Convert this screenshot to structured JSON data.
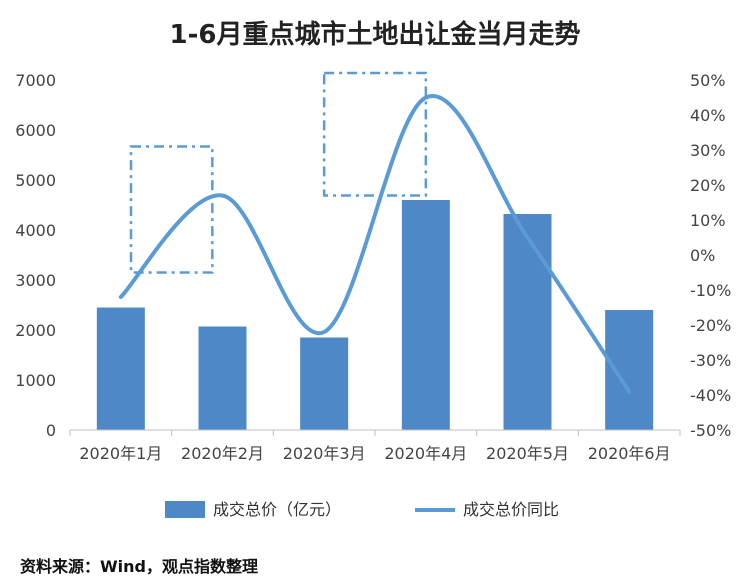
{
  "title": "1-6月重点城市土地出让金当月走势",
  "source": "资料来源：Wind，观点指数整理",
  "chart_data": {
    "type": "bar",
    "title": "1-6月重点城市土地出让金当月走势",
    "categories": [
      "2020年1月",
      "2020年2月",
      "2020年3月",
      "2020年4月",
      "2020年5月",
      "2020年6月"
    ],
    "series": [
      {
        "name": "成交总价（亿元）",
        "type": "bar",
        "axis": "left",
        "values": [
          2450,
          2070,
          1850,
          4600,
          4320,
          2400
        ]
      },
      {
        "name": "成交总价同比",
        "type": "line",
        "axis": "right",
        "values": [
          -12,
          17,
          -22,
          45,
          5,
          -39
        ]
      }
    ],
    "y_left": {
      "min": 0,
      "max": 7000,
      "ticks": [
        0,
        1000,
        2000,
        3000,
        4000,
        5000,
        6000,
        7000
      ]
    },
    "y_right": {
      "min": -50,
      "max": 50,
      "ticks": [
        "-50%",
        "-40%",
        "-30%",
        "-20%",
        "-10%",
        "0%",
        "10%",
        "20%",
        "30%",
        "40%",
        "50%"
      ]
    },
    "highlight_boxes": [
      {
        "x_range": [
          0.6,
          1.4
        ],
        "y_range": [
          -5,
          31
        ]
      },
      {
        "x_range": [
          2.5,
          3.5
        ],
        "y_range": [
          17,
          52
        ]
      }
    ],
    "bar_color": "#4e88c7",
    "line_color": "#5b9bd5",
    "legend_position": "bottom",
    "grid": false
  }
}
